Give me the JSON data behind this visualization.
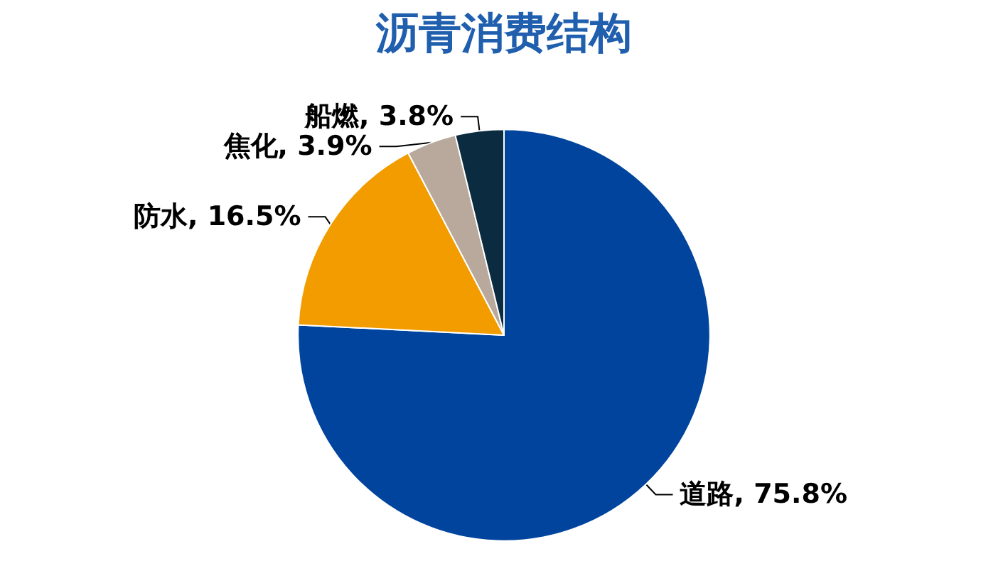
{
  "chart_data": {
    "type": "pie",
    "title": "沥青消费结构",
    "categories": [
      "道路",
      "防水",
      "焦化",
      "船燃"
    ],
    "values": [
      75.8,
      16.5,
      3.9,
      3.8
    ],
    "value_labels": [
      "75.8%",
      "16.5%",
      "3.9%",
      "3.8%"
    ],
    "colors": [
      "#00449e",
      "#f29c00",
      "#b8a99c",
      "#0b2b40"
    ],
    "legend": false
  }
}
